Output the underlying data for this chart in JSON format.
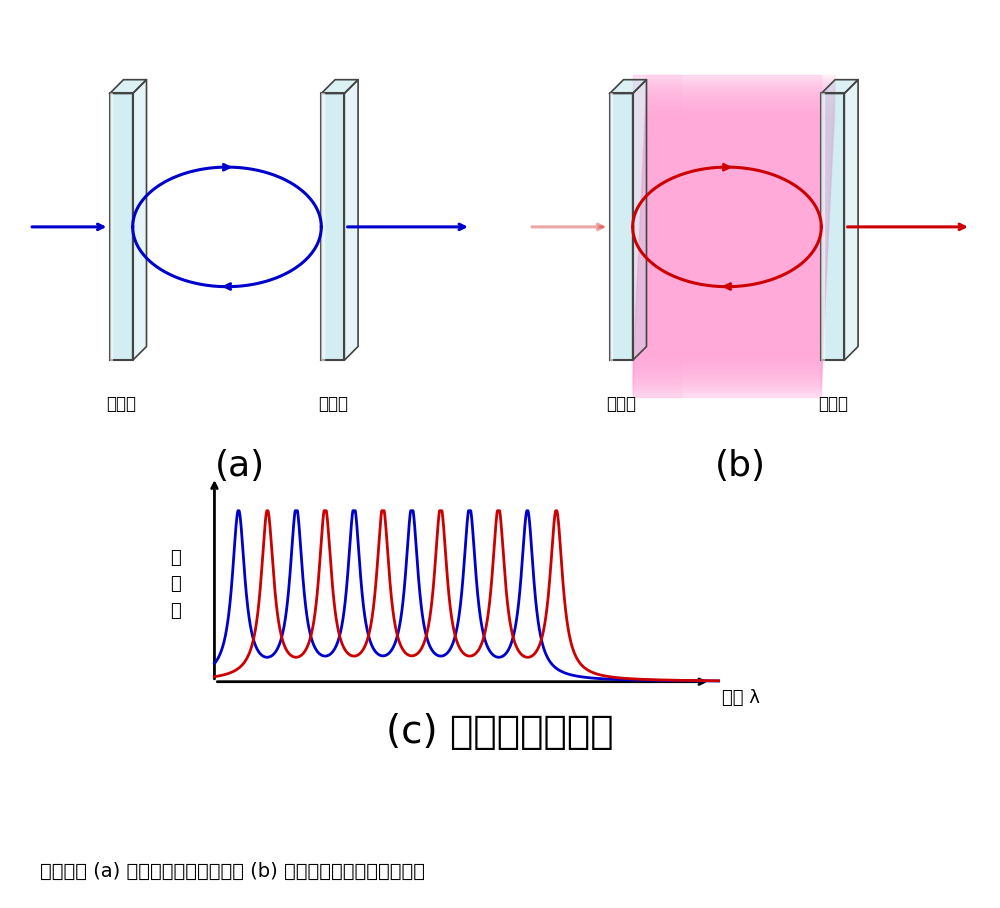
{
  "title_c": "(c) 波長特性の変化",
  "label_a": "(a)",
  "label_b": "(b)",
  "label_mirror": "反射板",
  "ylabel_c": "透\n過\n率",
  "xlabel_c": "波長 λ",
  "caption": "青い線は (a) の出力波長、赤い線は (b) の出力波長を表している。",
  "blue_color": "#0000cc",
  "red_color": "#cc0000",
  "glass_color": "#b0e0e8",
  "glass_edge": "#444444",
  "bg_color": "#ffffff"
}
